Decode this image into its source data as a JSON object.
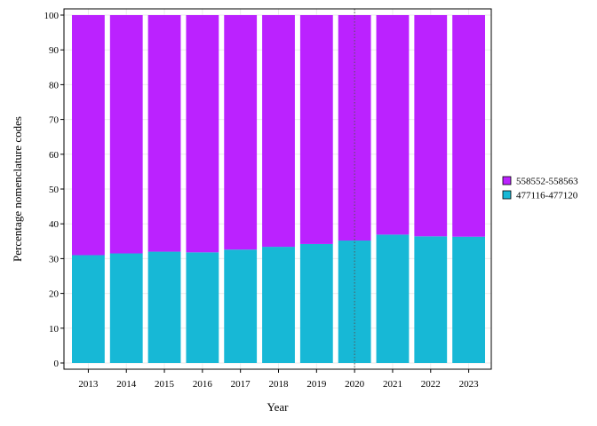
{
  "chart_data": {
    "type": "bar",
    "stacked": true,
    "categories": [
      "2013",
      "2014",
      "2015",
      "2016",
      "2017",
      "2018",
      "2019",
      "2020",
      "2021",
      "2022",
      "2023"
    ],
    "series": [
      {
        "name": "477116-477120",
        "color": "#17b8d6",
        "values": [
          31,
          31.5,
          32,
          31.8,
          32.6,
          33.4,
          34.2,
          35.2,
          36.9,
          36.4,
          36.3
        ]
      },
      {
        "name": "558552-558563",
        "color": "#bb22ff",
        "values": [
          69,
          68.5,
          68,
          68.2,
          67.4,
          66.6,
          65.8,
          64.8,
          63.1,
          63.6,
          63.7
        ]
      }
    ],
    "xlabel": "Year",
    "ylabel": "Percentage nomenclature codes",
    "ylim": [
      0,
      100
    ],
    "yticks": [
      0,
      10,
      20,
      30,
      40,
      50,
      60,
      70,
      80,
      90,
      100
    ],
    "grid": true,
    "legend_position": "right",
    "vertical_reference_line": "2020"
  }
}
